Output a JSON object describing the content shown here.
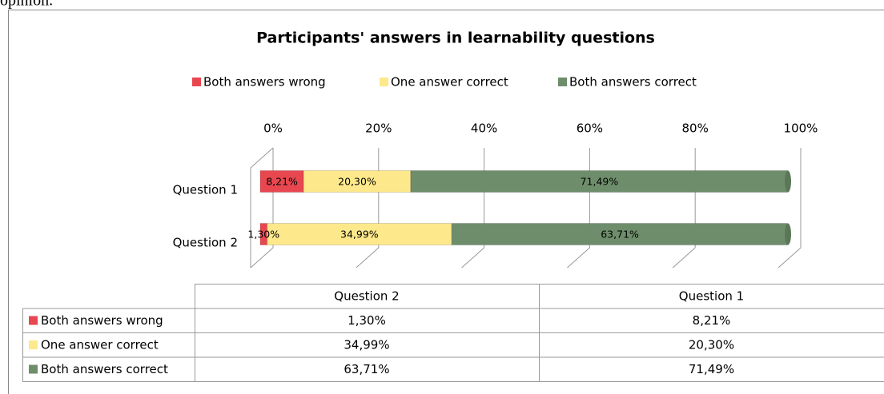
{
  "caption_fragment": "opinion.",
  "chart_data": {
    "type": "bar3d_stacked_horizontal",
    "title": "Participants' answers in learnability questions",
    "categories": [
      "Question 1",
      "Question 2"
    ],
    "series": [
      {
        "name": "Both answers wrong",
        "color": "#e8474f",
        "values": [
          8.21,
          1.3
        ],
        "value_labels": [
          "8,21%",
          "1,30%"
        ]
      },
      {
        "name": "One answer correct",
        "color": "#fde98b",
        "values": [
          20.3,
          34.99
        ],
        "value_labels": [
          "20,30%",
          "34,99%"
        ]
      },
      {
        "name": "Both answers correct",
        "color": "#6e8e6b",
        "values": [
          71.49,
          63.71
        ],
        "value_labels": [
          "71,49%",
          "63,71%"
        ]
      }
    ],
    "xlim": [
      0,
      100
    ],
    "xticks": [
      {
        "value": 0,
        "label": "0%"
      },
      {
        "value": 20,
        "label": "20%"
      },
      {
        "value": 40,
        "label": "40%"
      },
      {
        "value": 60,
        "label": "60%"
      },
      {
        "value": 80,
        "label": "80%"
      },
      {
        "value": 100,
        "label": "100%"
      }
    ],
    "grid": true,
    "legend": "top",
    "data_table": true
  }
}
